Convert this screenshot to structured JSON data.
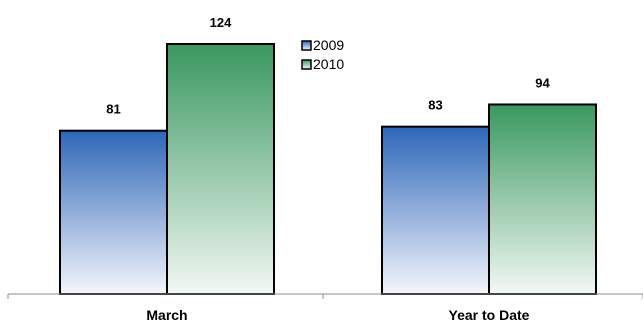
{
  "chart_data": {
    "type": "bar",
    "categories": [
      "March",
      "Year to Date"
    ],
    "series": [
      {
        "name": "2009",
        "values": [
          81,
          83
        ],
        "color_top": "#2e66b8",
        "color_bottom": "#f4f6fb"
      },
      {
        "name": "2010",
        "values": [
          124,
          94
        ],
        "color_top": "#3a9860",
        "color_bottom": "#f3f8f4"
      }
    ],
    "ylim": [
      0,
      140
    ],
    "grid": false,
    "legend_position": "top-center"
  }
}
